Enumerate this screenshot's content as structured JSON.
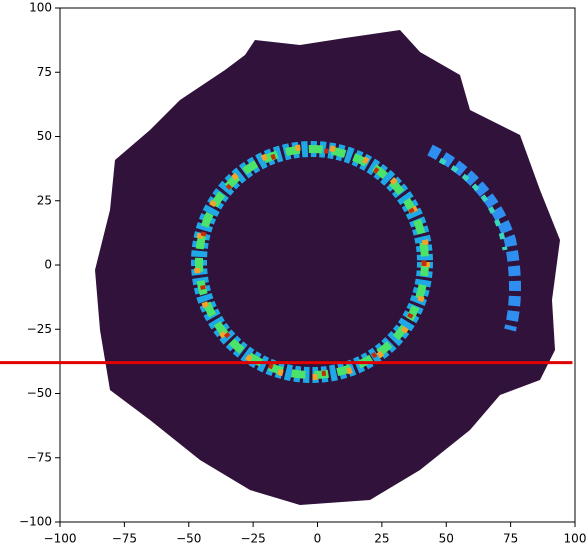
{
  "chart_data": {
    "type": "image",
    "xlim": [
      -100,
      100
    ],
    "ylim": [
      -100,
      100
    ],
    "xticks": [
      {
        "value": -100,
        "label": "−100"
      },
      {
        "value": -75,
        "label": "−75"
      },
      {
        "value": -50,
        "label": "−50"
      },
      {
        "value": -25,
        "label": "−25"
      },
      0,
      25,
      50,
      75,
      100
    ],
    "yticks": [
      {
        "value": -100,
        "label": "−100"
      },
      {
        "value": -75,
        "label": "−75"
      },
      {
        "value": -50,
        "label": "−50"
      },
      {
        "value": -25,
        "label": "−25"
      },
      0,
      25,
      50,
      75,
      100
    ],
    "annotation_line": {
      "y": -38,
      "color": "#e00000"
    }
  }
}
